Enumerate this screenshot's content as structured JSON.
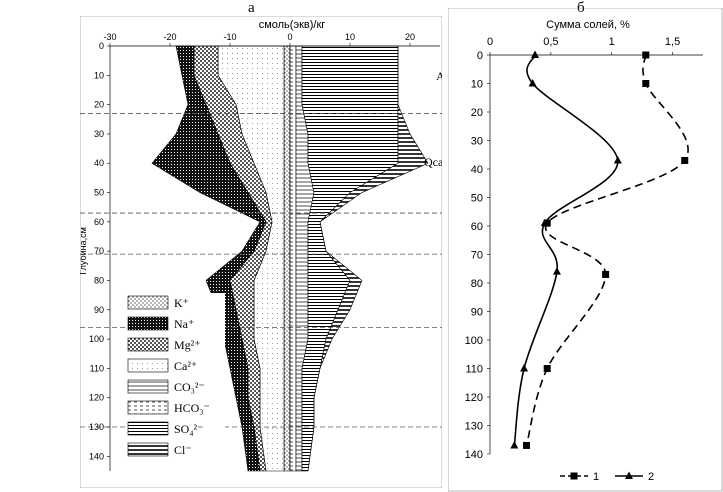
{
  "panel_labels": {
    "a": "а",
    "b": "б"
  },
  "chart_data": [
    {
      "type": "area",
      "xlabel": "смоль(экв)/кг",
      "ylabel": "Глубина,см",
      "xlim": [
        -30,
        25
      ],
      "ylim": [
        0,
        145
      ],
      "x_ticks": [
        -30,
        -20,
        -10,
        0,
        10,
        20
      ],
      "y_ticks": [
        0,
        10,
        20,
        30,
        40,
        50,
        60,
        70,
        80,
        90,
        100,
        110,
        120,
        130,
        140
      ],
      "depth": [
        0,
        10,
        20,
        30,
        40,
        50,
        60,
        70,
        80,
        90,
        100,
        110,
        120,
        130,
        145
      ],
      "side_labels": [
        "А",
        "Qca"
      ],
      "horizon_boundaries": [
        23,
        57,
        71,
        96,
        130
      ],
      "legend": [
        "K⁺",
        "Na⁺",
        "Mg²⁺",
        "Ca²⁺",
        "CO₃²⁻",
        "HCO₃⁻",
        "SO₄²⁻",
        "Cl⁻"
      ],
      "legend_position": "bottom-left",
      "cations_cumulative": {
        "K": [
          -1,
          -1,
          -1,
          -1,
          -1,
          -1,
          -1,
          -1,
          -1,
          -1,
          -1,
          -1,
          -1,
          -1,
          -1
        ],
        "Ca": [
          -12,
          -12,
          -9,
          -8,
          -6,
          -4,
          -3,
          -4,
          -6,
          -6,
          -6,
          -5,
          -5,
          -5,
          -4
        ],
        "Mg": [
          -16,
          -16,
          -14,
          -12,
          -10,
          -7,
          -4,
          -6,
          -10,
          -9,
          -8,
          -7,
          -7,
          -6,
          -5
        ],
        "Na": [
          -19,
          -18,
          -17,
          -19,
          -23,
          -15,
          -5,
          -8,
          -14,
          -12,
          -11,
          -10,
          -9,
          -8,
          -7
        ]
      },
      "anions_cumulative": {
        "HCO3": [
          1,
          1,
          1,
          1,
          1,
          1,
          1,
          1,
          1,
          1,
          1,
          1,
          1,
          1,
          1
        ],
        "CO3": [
          2,
          2,
          2,
          3,
          3,
          4,
          3,
          3,
          3,
          3,
          3,
          2,
          2,
          2,
          2
        ],
        "SO4": [
          18,
          18,
          18,
          18,
          18,
          10,
          5,
          6,
          10,
          8,
          6,
          5,
          4,
          4,
          3
        ],
        "Cl": [
          18,
          18,
          18,
          20,
          23,
          12,
          5,
          6,
          12,
          10,
          7,
          5,
          4,
          4,
          3
        ]
      }
    },
    {
      "type": "line",
      "title": "Сумма солей, %",
      "ylabel": "",
      "xlim": [
        0,
        1.75
      ],
      "ylim": [
        0,
        140
      ],
      "x_ticks": [
        0,
        0.5,
        1,
        1.5
      ],
      "x_tick_labels": [
        "0",
        "0,5",
        "1",
        "1,5"
      ],
      "y_ticks": [
        0,
        10,
        20,
        30,
        40,
        50,
        60,
        70,
        80,
        90,
        100,
        110,
        120,
        130,
        140
      ],
      "legend_position": "bottom-right",
      "series": [
        {
          "name": "1",
          "marker": "square",
          "style": "dashed",
          "points": [
            [
              1.28,
              0
            ],
            [
              1.28,
              10
            ],
            [
              1.6,
              37
            ],
            [
              0.47,
              59
            ],
            [
              0.95,
              77
            ],
            [
              0.47,
              110
            ],
            [
              0.3,
              137
            ]
          ]
        },
        {
          "name": "2",
          "marker": "triangle",
          "style": "solid",
          "points": [
            [
              0.37,
              0
            ],
            [
              0.35,
              10
            ],
            [
              1.05,
              37
            ],
            [
              0.45,
              59
            ],
            [
              0.55,
              76
            ],
            [
              0.28,
              110
            ],
            [
              0.2,
              137
            ]
          ]
        }
      ]
    }
  ]
}
